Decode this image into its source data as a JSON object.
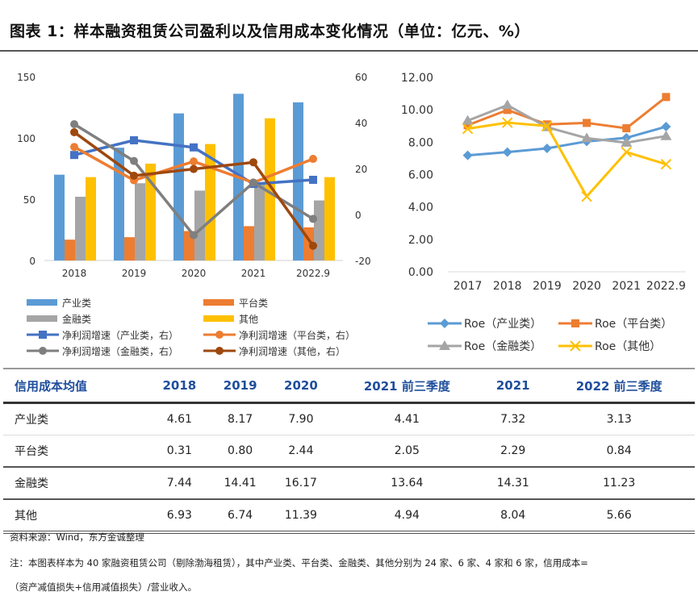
{
  "title": "图表 1：样本融资租赁公司盈利以及信用成本变化情况（单位：亿元、%）",
  "chart_data": [
    {
      "type": "bar",
      "categories": [
        "2018",
        "2019",
        "2020",
        "2021",
        "2022.9"
      ],
      "ylim": [
        0,
        150
      ],
      "yticks": [
        "0",
        "50",
        "100",
        "150"
      ],
      "y2lim": [
        -20,
        60
      ],
      "y2ticks": [
        "-20",
        "0",
        "20",
        "40",
        "60"
      ],
      "bar_series": [
        {
          "name": "产业类",
          "color": "#5b9bd5",
          "values": [
            70,
            92,
            120,
            136,
            129
          ]
        },
        {
          "name": "平台类",
          "color": "#ed7d31",
          "values": [
            17,
            19,
            24,
            28,
            27
          ]
        },
        {
          "name": "金融类",
          "color": "#a5a5a5",
          "values": [
            52,
            63,
            57,
            62,
            49
          ]
        },
        {
          "name": "其他",
          "color": "#ffc000",
          "values": [
            68,
            79,
            95,
            116,
            68
          ]
        }
      ],
      "line_series": [
        {
          "name": "净利润增速（产业类，右）",
          "color": "#4472c4",
          "marker": "square",
          "values": [
            25.9,
            32.3,
            29.2,
            13.3,
            15.1
          ]
        },
        {
          "name": "净利润增速（平台类，右）",
          "color": "#ed7d31",
          "marker": "circle",
          "values": [
            29.4,
            14.9,
            23.1,
            13.9,
            24.2
          ]
        },
        {
          "name": "净利润增速（金融类，右）",
          "color": "#7f7f7f",
          "marker": "circle",
          "values": [
            39.3,
            23.3,
            -9.0,
            13.9,
            -1.9
          ]
        },
        {
          "name": "净利润增速（其他，右）",
          "color": "#9e480e",
          "marker": "circle",
          "values": [
            35.8,
            16.9,
            19.8,
            22.7,
            -13.6
          ]
        }
      ],
      "legend_placement": "bottom"
    },
    {
      "type": "line",
      "categories": [
        "2017",
        "2018",
        "2019",
        "2020",
        "2021",
        "2022.9"
      ],
      "ylim": [
        0,
        12
      ],
      "yticks": [
        "0.00",
        "2.00",
        "4.00",
        "6.00",
        "8.00",
        "10.00",
        "12.00"
      ],
      "series": [
        {
          "name": "Roe（产业类）",
          "color": "#5b9bd5",
          "marker": "diamond",
          "values": [
            7.19,
            7.39,
            7.62,
            8.05,
            8.27,
            8.96
          ]
        },
        {
          "name": "Roe（平台类）",
          "color": "#ed7d31",
          "marker": "square",
          "values": [
            9.05,
            9.99,
            9.1,
            9.19,
            8.86,
            10.79
          ]
        },
        {
          "name": "Roe（金融类）",
          "color": "#a5a5a5",
          "marker": "triangle",
          "values": [
            9.33,
            10.29,
            8.93,
            8.25,
            7.97,
            8.38
          ]
        },
        {
          "name": "Roe（其他）",
          "color": "#ffc000",
          "marker": "x",
          "values": [
            8.83,
            9.21,
            9.0,
            4.65,
            7.39,
            6.64
          ]
        }
      ],
      "legend_placement": "bottom"
    }
  ],
  "table": {
    "headers": [
      "信用成本均值",
      "2018",
      "2019",
      "2020",
      "2021 前三季度",
      "2021",
      "2022 前三季度"
    ],
    "rows": [
      [
        "产业类",
        "4.61",
        "8.17",
        "7.90",
        "4.41",
        "7.32",
        "3.13"
      ],
      [
        "平台类",
        "0.31",
        "0.80",
        "2.44",
        "2.05",
        "2.29",
        "0.84"
      ],
      [
        "金融类",
        "7.44",
        "14.41",
        "16.17",
        "13.64",
        "14.31",
        "11.23"
      ],
      [
        "其他",
        "6.93",
        "6.74",
        "11.39",
        "4.94",
        "8.04",
        "5.66"
      ]
    ]
  },
  "source": "资料来源：Wind，东方金诚整理",
  "note_line1": "注：本图表样本为 40 家融资租赁公司（剔除渤海租赁），其中产业类、平台类、金融类、其他分别为 24 家、6 家、4 家和 6 家，信用成本=",
  "note_line2": "（资产减值损失+信用减值损失）/营业收入。"
}
